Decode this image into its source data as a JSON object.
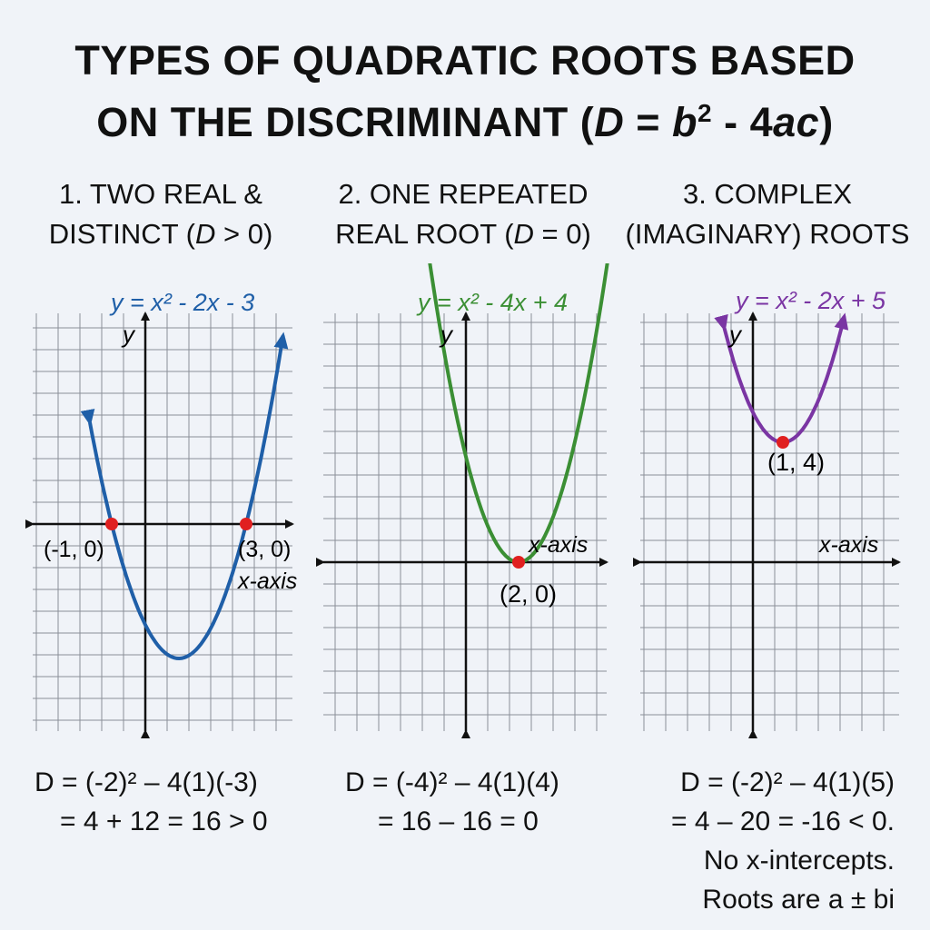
{
  "title": {
    "line1": "TYPES OF QUADRATIC ROOTS BASED",
    "line2_prefix": "ON THE DISCRIMINANT (",
    "line2_var": "D",
    "line2_eq": " = ",
    "line2_b": "b",
    "line2_sup": "2",
    "line2_mid": " - 4",
    "line2_ac": "ac",
    "line2_suffix": ")"
  },
  "panels": [
    {
      "heading_line1": "1. TWO REAL &",
      "heading_line2_prefix": "DISTINCT (",
      "heading_line2_var": "D",
      "heading_line2_suffix": " > 0)",
      "equation": "y = x² - 2x - 3",
      "color": "#1f5fa8",
      "y_axis_label": "y",
      "x_axis_label": "x-axis",
      "points": [
        {
          "x": -1,
          "y": 0,
          "label": "(-1, 0)"
        },
        {
          "x": 3,
          "y": 0,
          "label": "(3, 0)"
        }
      ],
      "calc": [
        "D = (-2)² – 4(1)(-3)",
        "= 4 + 12 = 16 > 0"
      ]
    },
    {
      "heading_line1": "2. ONE REPEATED",
      "heading_line2_prefix": "REAL ROOT (",
      "heading_line2_var": "D",
      "heading_line2_suffix": " = 0)",
      "equation": "y = x² - 4x + 4",
      "color": "#3b8f34",
      "y_axis_label": "y",
      "x_axis_label": "x-axis",
      "points": [
        {
          "x": 2,
          "y": 0,
          "label": "(2, 0)"
        }
      ],
      "calc": [
        "D = (-4)² – 4(1)(4)",
        "= 16 – 16 = 0"
      ]
    },
    {
      "heading_line1": "3. COMPLEX",
      "heading_line2_prefix": "(IMAGINARY) ROOTS",
      "heading_line2_var": "",
      "heading_line2_suffix": "",
      "equation": "y = x² - 2x + 5",
      "color": "#7a35a3",
      "y_axis_label": "y",
      "x_axis_label": "x-axis",
      "points": [
        {
          "x": 1,
          "y": 4,
          "label": "(1, 4)"
        }
      ],
      "calc": [
        "D = (-2)² – 4(1)(5)",
        "= 4 – 20 = -16 < 0.",
        "No x-intercepts.",
        "Roots are a ± bi"
      ]
    }
  ],
  "point_color": "#e02020"
}
